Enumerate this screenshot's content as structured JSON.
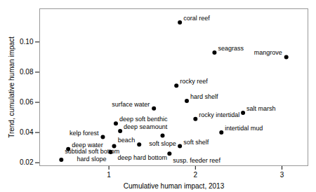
{
  "chart_data": {
    "type": "scatter",
    "xlabel": "Cumulative human impact, 2013",
    "ylabel": "Trend, cumulative human impact",
    "labels": [
      "coral reef",
      "seagrass",
      "mangrove",
      "rocky reef",
      "surface water",
      "hard shelf",
      "salt marsh",
      "deep soft benthic",
      "rocky intertidal",
      "deep seamount",
      "intertidal mud",
      "kelp forest",
      "soft slope",
      "beach",
      "deep water",
      "deep hard bottom",
      "hard slope",
      "soft shelf",
      "susp. feeder reef",
      "subtidal soft bottom"
    ],
    "x": [
      1.82,
      2.22,
      3.05,
      1.78,
      1.52,
      1.9,
      2.55,
      1.08,
      2.0,
      1.13,
      2.3,
      0.93,
      1.62,
      1.35,
      0.53,
      1.06,
      1.02,
      1.82,
      1.7,
      0.45
    ],
    "values": [
      0.113,
      0.093,
      0.09,
      0.071,
      0.056,
      0.061,
      0.053,
      0.046,
      0.049,
      0.041,
      0.04,
      0.037,
      0.038,
      0.032,
      0.029,
      0.031,
      0.027,
      0.031,
      0.026,
      0.022
    ],
    "xlim": [
      0.2,
      3.3
    ],
    "ylim": [
      0.018,
      0.122
    ],
    "xticks": [
      1,
      2,
      3
    ],
    "yticks": [
      0.02,
      0.04,
      0.06,
      0.08,
      {
        "value": 0.1,
        "label": "0.10"
      }
    ],
    "grid": false
  }
}
